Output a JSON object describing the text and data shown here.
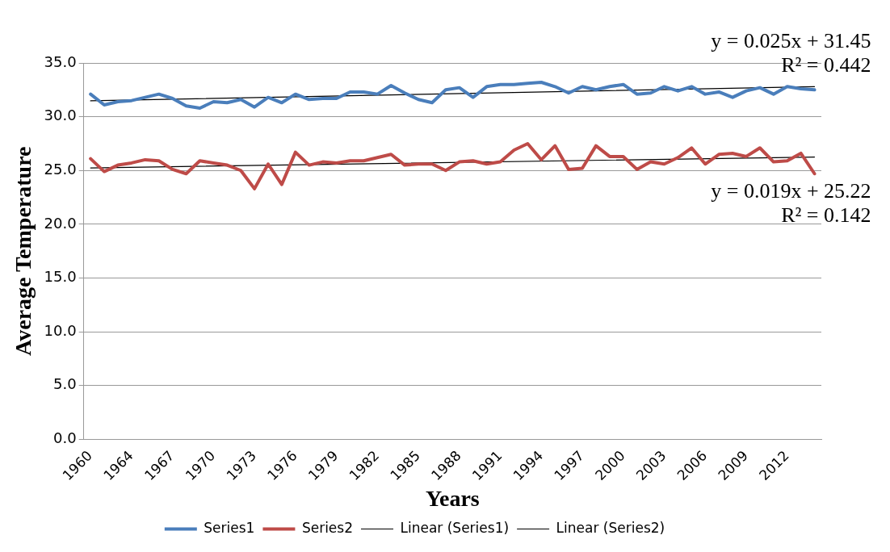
{
  "chart_data": {
    "type": "line",
    "xlabel": "Years",
    "ylabel": "Average Temperature",
    "categories": [
      "1960",
      null,
      null,
      "1964",
      null,
      null,
      "1967",
      null,
      null,
      "1970",
      null,
      null,
      "1973",
      null,
      null,
      "1976",
      null,
      null,
      "1979",
      null,
      null,
      "1982",
      null,
      null,
      "1985",
      null,
      null,
      "1988",
      null,
      null,
      "1991",
      null,
      null,
      "1994",
      null,
      null,
      "1997",
      null,
      null,
      "2000",
      null,
      null,
      "2003",
      null,
      null,
      "2006",
      null,
      null,
      "2009",
      null,
      null,
      "2012",
      null,
      null
    ],
    "series": [
      {
        "name": "Series1",
        "color": "#4a7ebb",
        "values": [
          32.1,
          31.1,
          31.4,
          31.5,
          31.8,
          32.1,
          31.7,
          31.0,
          30.8,
          31.4,
          31.3,
          31.6,
          30.9,
          31.8,
          31.3,
          32.1,
          31.6,
          31.7,
          31.7,
          32.3,
          32.3,
          32.1,
          32.9,
          32.2,
          31.6,
          31.3,
          32.5,
          32.7,
          31.8,
          32.8,
          33.0,
          33.0,
          33.1,
          33.2,
          32.8,
          32.2,
          32.8,
          32.5,
          32.8,
          33.0,
          32.1,
          32.2,
          32.8,
          32.4,
          32.8,
          32.1,
          32.3,
          31.8,
          32.4,
          32.7,
          32.1,
          32.8,
          32.6,
          32.5
        ]
      },
      {
        "name": "Series2",
        "color": "#be4b48",
        "values": [
          26.1,
          24.9,
          25.5,
          25.7,
          26.0,
          25.9,
          25.1,
          24.7,
          25.9,
          25.7,
          25.5,
          25.0,
          23.3,
          25.6,
          23.7,
          26.7,
          25.5,
          25.8,
          25.7,
          25.9,
          25.9,
          26.2,
          26.5,
          25.5,
          25.6,
          25.6,
          25.0,
          25.8,
          25.9,
          25.6,
          25.8,
          26.9,
          27.5,
          26.0,
          27.3,
          25.1,
          25.2,
          27.3,
          26.3,
          26.3,
          25.1,
          25.8,
          25.6,
          26.2,
          27.1,
          25.6,
          26.5,
          26.6,
          26.3,
          27.1,
          25.8,
          25.9,
          26.6,
          24.7
        ]
      },
      {
        "name": "Linear (Series1)",
        "type": "line",
        "color": "#000000",
        "values": [
          31.48,
          null,
          null,
          null,
          null,
          null,
          null,
          null,
          null,
          null,
          null,
          null,
          null,
          null,
          null,
          null,
          null,
          null,
          null,
          null,
          null,
          null,
          null,
          null,
          null,
          null,
          null,
          null,
          null,
          null,
          null,
          null,
          null,
          null,
          null,
          null,
          null,
          null,
          null,
          null,
          null,
          null,
          null,
          null,
          null,
          null,
          null,
          null,
          null,
          null,
          null,
          null,
          null,
          32.8
        ]
      },
      {
        "name": "Linear (Series2)",
        "type": "line",
        "color": "#000000",
        "values": [
          25.24,
          null,
          null,
          null,
          null,
          null,
          null,
          null,
          null,
          null,
          null,
          null,
          null,
          null,
          null,
          null,
          null,
          null,
          null,
          null,
          null,
          null,
          null,
          null,
          null,
          null,
          null,
          null,
          null,
          null,
          null,
          null,
          null,
          null,
          null,
          null,
          null,
          null,
          null,
          null,
          null,
          null,
          null,
          null,
          null,
          null,
          null,
          null,
          null,
          null,
          null,
          null,
          null,
          26.25
        ]
      }
    ],
    "annotations": [
      "y = 0.025x + 31.45\nR² = 0.442",
      "y = 0.019x + 25.22\nR² = 0.142"
    ],
    "ylim": [
      0,
      35
    ],
    "yticks": [
      {
        "value": 0,
        "label": "0.0"
      },
      {
        "value": 5,
        "label": "5.0"
      },
      {
        "value": 10,
        "label": "10.0"
      },
      {
        "value": 15,
        "label": "15.0"
      },
      {
        "value": 20,
        "label": "20.0"
      },
      {
        "value": 25,
        "label": "25.0"
      },
      {
        "value": 30,
        "label": "30.0"
      },
      {
        "value": 35,
        "label": "35.0"
      }
    ],
    "grid": "y",
    "legend": "bottom",
    "marker": "none",
    "line_style": "solid"
  }
}
